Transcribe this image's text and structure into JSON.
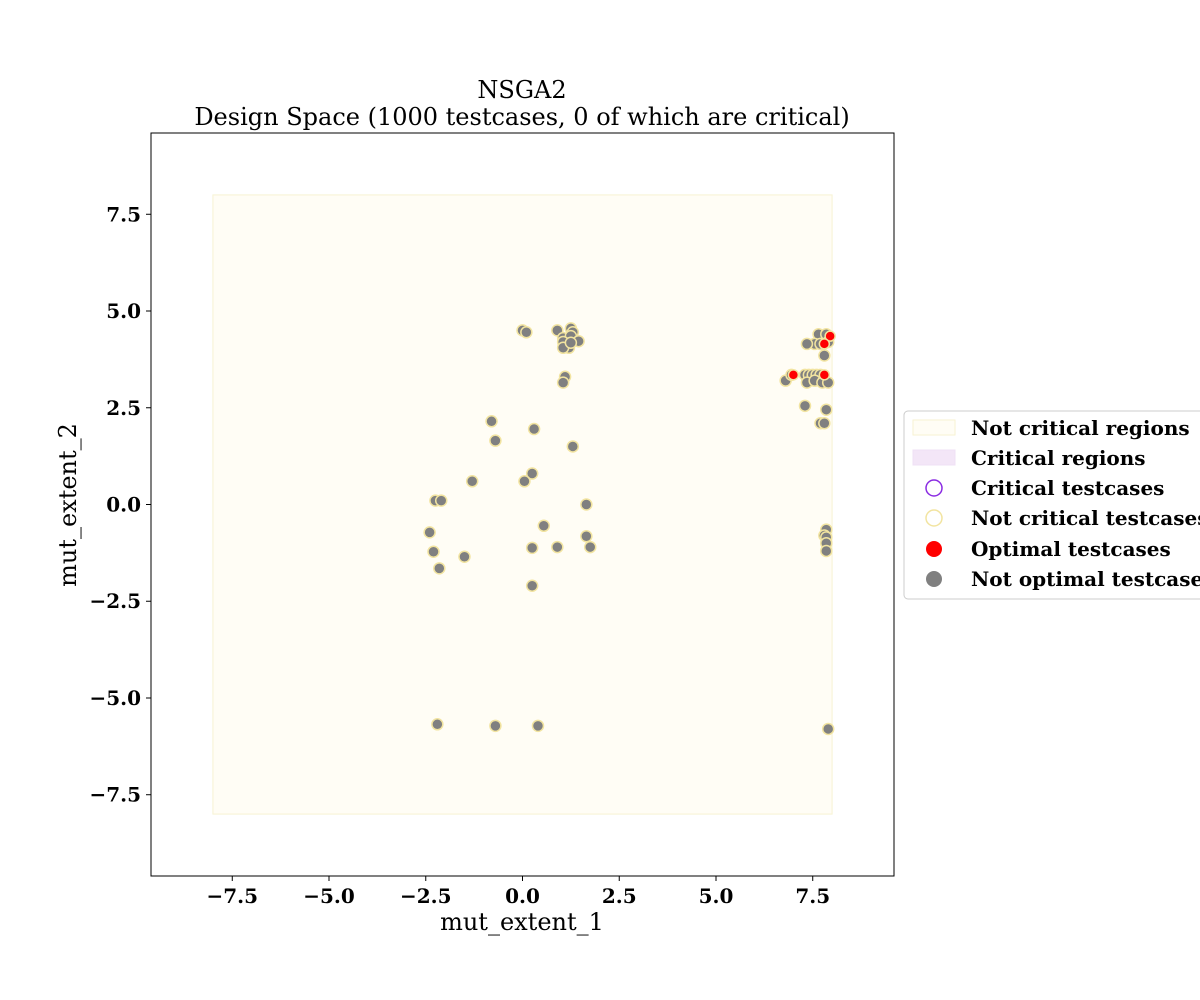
{
  "chart_data": {
    "type": "scatter",
    "title_line1": "NSGA2",
    "title_line2": "Design Space (1000 testcases, 0 of which are critical)",
    "xlabel": "mut_extent_1",
    "ylabel": "mut_extent_2",
    "xlim": [
      -9.6,
      9.6
    ],
    "ylim": [
      -9.6,
      9.6
    ],
    "xticks": [
      -7.5,
      -5.0,
      -2.5,
      0.0,
      2.5,
      5.0,
      7.5
    ],
    "xtick_labels": [
      "−7.5",
      "−5.0",
      "−2.5",
      "0.0",
      "2.5",
      "5.0",
      "7.5"
    ],
    "yticks": [
      7.5,
      5.0,
      2.5,
      0.0,
      -2.5,
      -5.0,
      -7.5
    ],
    "ytick_labels": [
      "7.5",
      "5.0",
      "2.5",
      "0.0",
      "−2.5",
      "−5.0",
      "−7.5"
    ],
    "grid": false,
    "legend_placement": "right",
    "not_critical_region": {
      "x": [
        -8,
        8
      ],
      "y": [
        -8,
        8
      ],
      "fill": "#fffdf5",
      "edge": "#f7f2d2"
    },
    "colors": {
      "not_optimal_fill": "#808080",
      "not_critical_edge": "#f2e4a0",
      "critical_edge": "#8a2be2",
      "critical_region_fill": "#f3e6f7",
      "optimal_fill": "#ff0000"
    },
    "series": [
      {
        "name": "Not optimal testcases",
        "points": [
          [
            0.0,
            4.5
          ],
          [
            0.1,
            4.45
          ],
          [
            0.9,
            4.5
          ],
          [
            1.25,
            4.55
          ],
          [
            1.3,
            4.45
          ],
          [
            1.05,
            4.3
          ],
          [
            1.25,
            4.35
          ],
          [
            1.05,
            4.2
          ],
          [
            1.45,
            4.22
          ],
          [
            1.2,
            4.05
          ],
          [
            1.05,
            4.05
          ],
          [
            1.25,
            4.18
          ],
          [
            1.1,
            3.3
          ],
          [
            1.05,
            3.15
          ],
          [
            -0.8,
            2.15
          ],
          [
            -0.7,
            1.65
          ],
          [
            0.3,
            1.95
          ],
          [
            1.3,
            1.5
          ],
          [
            -1.3,
            0.6
          ],
          [
            0.25,
            0.8
          ],
          [
            0.05,
            0.6
          ],
          [
            -2.25,
            0.1
          ],
          [
            -2.1,
            0.1
          ],
          [
            1.65,
            0.0
          ],
          [
            -2.4,
            -0.72
          ],
          [
            0.55,
            -0.55
          ],
          [
            1.65,
            -0.82
          ],
          [
            -2.3,
            -1.22
          ],
          [
            -1.5,
            -1.35
          ],
          [
            0.25,
            -1.12
          ],
          [
            0.9,
            -1.1
          ],
          [
            1.75,
            -1.1
          ],
          [
            -2.15,
            -1.65
          ],
          [
            0.25,
            -2.1
          ],
          [
            -2.2,
            -5.68
          ],
          [
            -0.7,
            -5.72
          ],
          [
            0.4,
            -5.72
          ],
          [
            7.9,
            -5.8
          ],
          [
            7.65,
            4.4
          ],
          [
            7.85,
            4.4
          ],
          [
            7.55,
            4.15
          ],
          [
            7.7,
            4.15
          ],
          [
            7.9,
            4.2
          ],
          [
            7.35,
            4.15
          ],
          [
            7.8,
            3.85
          ],
          [
            6.8,
            3.2
          ],
          [
            7.3,
            3.35
          ],
          [
            7.4,
            3.35
          ],
          [
            7.5,
            3.35
          ],
          [
            7.6,
            3.35
          ],
          [
            7.7,
            3.35
          ],
          [
            7.35,
            3.15
          ],
          [
            7.55,
            3.2
          ],
          [
            7.75,
            3.15
          ],
          [
            7.9,
            3.15
          ],
          [
            6.95,
            3.35
          ],
          [
            7.3,
            2.55
          ],
          [
            7.85,
            2.45
          ],
          [
            7.7,
            2.1
          ],
          [
            7.8,
            2.1
          ],
          [
            7.85,
            -0.65
          ],
          [
            7.8,
            -0.8
          ],
          [
            7.85,
            -0.85
          ],
          [
            7.85,
            -1.0
          ],
          [
            7.85,
            -1.2
          ]
        ]
      },
      {
        "name": "Optimal testcases",
        "points": [
          [
            7.95,
            4.35
          ],
          [
            7.8,
            4.15
          ],
          [
            7.0,
            3.35
          ],
          [
            7.8,
            3.35
          ]
        ]
      }
    ],
    "legend": [
      {
        "key": "not_critical_regions",
        "label": "Not critical regions"
      },
      {
        "key": "critical_regions",
        "label": "Critical regions"
      },
      {
        "key": "critical_testcases",
        "label": "Critical testcases"
      },
      {
        "key": "not_critical_testcases",
        "label": "Not critical testcases"
      },
      {
        "key": "optimal_testcases",
        "label": "Optimal testcases"
      },
      {
        "key": "not_optimal_testcases",
        "label": "Not optimal testcases"
      }
    ]
  }
}
